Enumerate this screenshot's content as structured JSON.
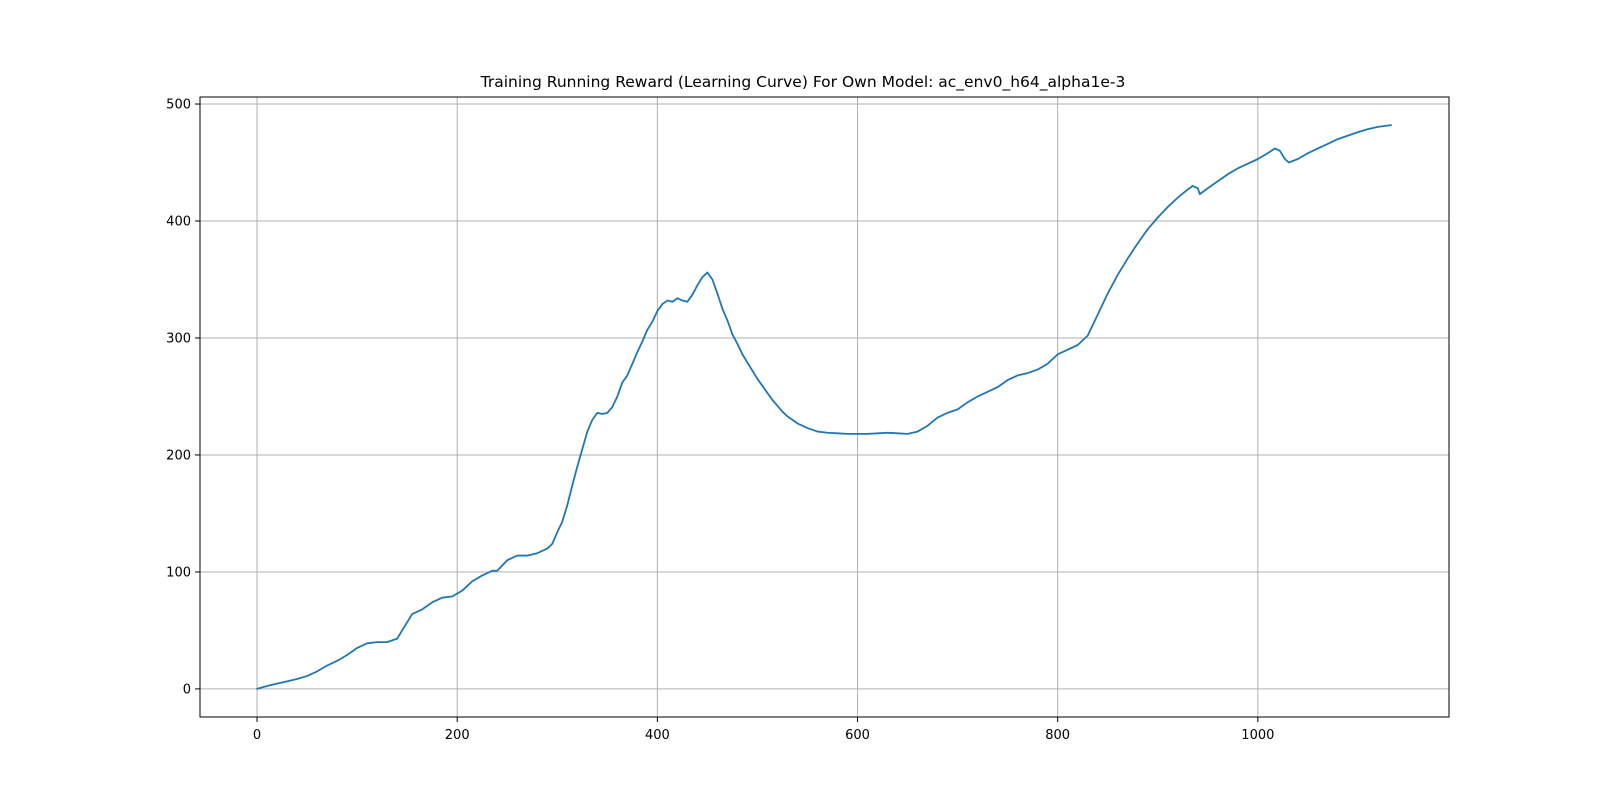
{
  "chart_data": {
    "type": "line",
    "title": "Training Running Reward (Learning Curve) For Own Model: ac_env0_h64_alpha1e-3",
    "xlabel": "",
    "ylabel": "",
    "xlim": [
      -57,
      1191
    ],
    "ylim": [
      -24,
      506
    ],
    "xticks": [
      0,
      200,
      400,
      600,
      800,
      1000
    ],
    "yticks": [
      0,
      100,
      200,
      300,
      400,
      500
    ],
    "xtick_labels": [
      "0",
      "200",
      "400",
      "600",
      "800",
      "1000"
    ],
    "ytick_labels": [
      "0",
      "100",
      "200",
      "300",
      "400",
      "500"
    ],
    "grid": true,
    "legend": "none",
    "series": [
      {
        "color": "#1f77b4",
        "points": [
          [
            0,
            0
          ],
          [
            10,
            2.5
          ],
          [
            20,
            4.5
          ],
          [
            30,
            6.5
          ],
          [
            40,
            8.5
          ],
          [
            50,
            11
          ],
          [
            60,
            15
          ],
          [
            70,
            20
          ],
          [
            80,
            24
          ],
          [
            90,
            29
          ],
          [
            100,
            35
          ],
          [
            110,
            39
          ],
          [
            120,
            40
          ],
          [
            130,
            40
          ],
          [
            140,
            43
          ],
          [
            150,
            57
          ],
          [
            155,
            64
          ],
          [
            165,
            68
          ],
          [
            175,
            74
          ],
          [
            185,
            78
          ],
          [
            195,
            79
          ],
          [
            205,
            84
          ],
          [
            215,
            92
          ],
          [
            225,
            97
          ],
          [
            235,
            101
          ],
          [
            240,
            101
          ],
          [
            250,
            110
          ],
          [
            260,
            114
          ],
          [
            270,
            114
          ],
          [
            280,
            116
          ],
          [
            290,
            120
          ],
          [
            295,
            124
          ],
          [
            300,
            134
          ],
          [
            305,
            143
          ],
          [
            310,
            157
          ],
          [
            315,
            174
          ],
          [
            320,
            190
          ],
          [
            325,
            205
          ],
          [
            330,
            220
          ],
          [
            335,
            230
          ],
          [
            340,
            236
          ],
          [
            345,
            235
          ],
          [
            350,
            236
          ],
          [
            355,
            241
          ],
          [
            360,
            250
          ],
          [
            365,
            262
          ],
          [
            370,
            268
          ],
          [
            375,
            278
          ],
          [
            380,
            288
          ],
          [
            385,
            297
          ],
          [
            390,
            307
          ],
          [
            395,
            314
          ],
          [
            400,
            323
          ],
          [
            405,
            329
          ],
          [
            410,
            332
          ],
          [
            415,
            331
          ],
          [
            420,
            334
          ],
          [
            425,
            332
          ],
          [
            430,
            331
          ],
          [
            435,
            337
          ],
          [
            440,
            345
          ],
          [
            445,
            352
          ],
          [
            450,
            356
          ],
          [
            455,
            350
          ],
          [
            460,
            338
          ],
          [
            465,
            325
          ],
          [
            470,
            315
          ],
          [
            475,
            303
          ],
          [
            480,
            295
          ],
          [
            485,
            286
          ],
          [
            490,
            279
          ],
          [
            495,
            272
          ],
          [
            500,
            265
          ],
          [
            505,
            259
          ],
          [
            510,
            253
          ],
          [
            515,
            247
          ],
          [
            520,
            242
          ],
          [
            525,
            237
          ],
          [
            530,
            233
          ],
          [
            540,
            227
          ],
          [
            550,
            223
          ],
          [
            560,
            220
          ],
          [
            570,
            219
          ],
          [
            580,
            218.5
          ],
          [
            590,
            218
          ],
          [
            600,
            218
          ],
          [
            610,
            218
          ],
          [
            620,
            218.5
          ],
          [
            630,
            219
          ],
          [
            640,
            218.5
          ],
          [
            650,
            218
          ],
          [
            660,
            220
          ],
          [
            670,
            225
          ],
          [
            680,
            232
          ],
          [
            690,
            236
          ],
          [
            700,
            239
          ],
          [
            710,
            245
          ],
          [
            720,
            250
          ],
          [
            730,
            254
          ],
          [
            740,
            258
          ],
          [
            750,
            264
          ],
          [
            760,
            268
          ],
          [
            770,
            270
          ],
          [
            780,
            273
          ],
          [
            790,
            278
          ],
          [
            800,
            286
          ],
          [
            810,
            290
          ],
          [
            820,
            294
          ],
          [
            830,
            302
          ],
          [
            840,
            320
          ],
          [
            850,
            338
          ],
          [
            860,
            354
          ],
          [
            870,
            368
          ],
          [
            880,
            381
          ],
          [
            890,
            393
          ],
          [
            900,
            403
          ],
          [
            910,
            412
          ],
          [
            920,
            420
          ],
          [
            930,
            427
          ],
          [
            935,
            430
          ],
          [
            940,
            428
          ],
          [
            942,
            423
          ],
          [
            950,
            428
          ],
          [
            960,
            434
          ],
          [
            970,
            440
          ],
          [
            980,
            445
          ],
          [
            990,
            449
          ],
          [
            1000,
            453
          ],
          [
            1010,
            458
          ],
          [
            1017,
            462
          ],
          [
            1022,
            460
          ],
          [
            1027,
            453
          ],
          [
            1031,
            450
          ],
          [
            1040,
            453
          ],
          [
            1050,
            458
          ],
          [
            1060,
            462
          ],
          [
            1070,
            466
          ],
          [
            1080,
            470
          ],
          [
            1090,
            473
          ],
          [
            1100,
            476
          ],
          [
            1110,
            478.5
          ],
          [
            1120,
            480.5
          ],
          [
            1133,
            482
          ]
        ]
      }
    ]
  }
}
